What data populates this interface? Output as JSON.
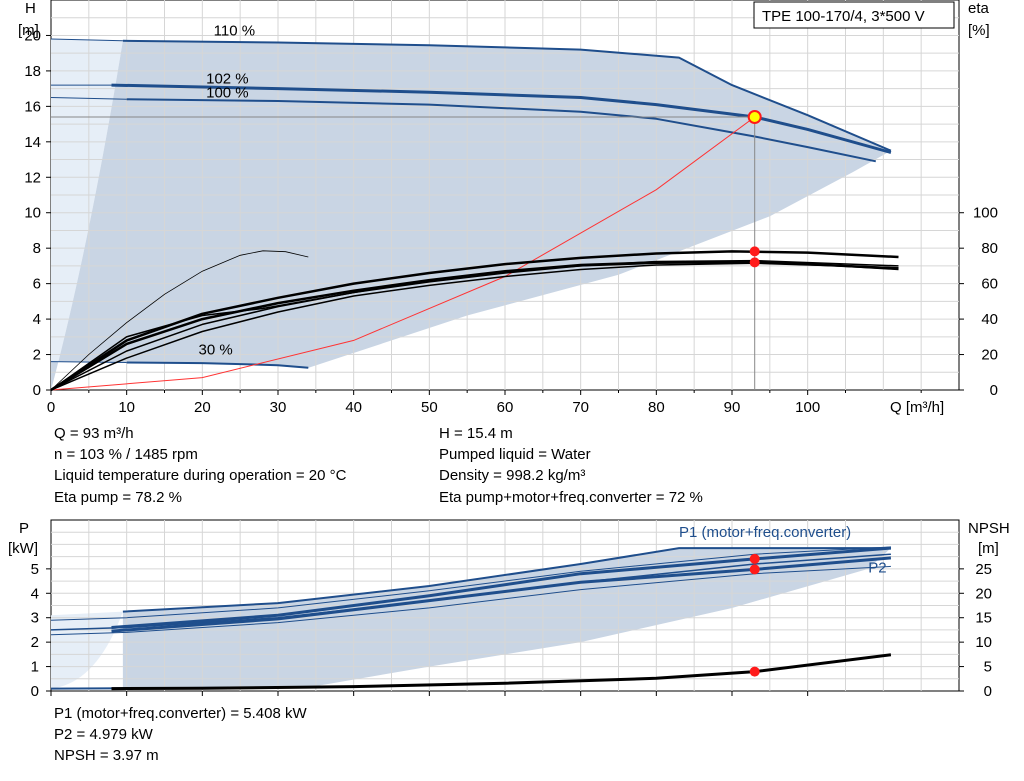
{
  "chart_data": [
    {
      "type": "line",
      "title": "TPE 100-170/4, 3*500 V",
      "x_axis": {
        "label": "Q [m³/h]",
        "range": [
          0,
          120
        ],
        "ticks": [
          0,
          10,
          20,
          30,
          40,
          50,
          60,
          70,
          80,
          90,
          100
        ]
      },
      "y_left": {
        "label_line1": "H",
        "label_line2": "[m]",
        "range": [
          0,
          22
        ],
        "ticks": [
          0,
          2,
          4,
          6,
          8,
          10,
          12,
          14,
          16,
          18,
          20
        ]
      },
      "y_right": {
        "label_line1": "eta",
        "label_line2": "[%]",
        "range": [
          0,
          220
        ],
        "ticks": [
          0,
          20,
          40,
          60,
          80,
          100
        ]
      },
      "grid": true,
      "curve_labels": [
        {
          "text": "110 %",
          "q": 21.5,
          "h": 20.0
        },
        {
          "text": "102 %",
          "q": 20.5,
          "h": 17.3
        },
        {
          "text": "100 %",
          "q": 20.5,
          "h": 16.5
        },
        {
          "text": "30 %",
          "q": 19.5,
          "h": 2.0
        }
      ],
      "series": [
        {
          "role": "H-110",
          "points": [
            [
              0,
              19.8
            ],
            [
              9.5,
              19.7
            ],
            [
              30,
              19.6
            ],
            [
              50,
              19.45
            ],
            [
              70,
              19.2
            ],
            [
              83,
              18.75
            ],
            [
              90,
              17.2
            ],
            [
              100,
              15.5
            ],
            [
              111,
              13.5
            ]
          ]
        },
        {
          "role": "H-102",
          "points": [
            [
              0,
              17.2
            ],
            [
              8,
              17.2
            ],
            [
              30,
              17.0
            ],
            [
              50,
              16.8
            ],
            [
              70,
              16.5
            ],
            [
              80,
              16.1
            ],
            [
              93,
              15.4
            ],
            [
              100,
              14.7
            ],
            [
              111,
              13.4
            ]
          ]
        },
        {
          "role": "H-100",
          "points": [
            [
              0,
              16.5
            ],
            [
              10,
              16.4
            ],
            [
              30,
              16.3
            ],
            [
              50,
              16.1
            ],
            [
              70,
              15.7
            ],
            [
              80,
              15.3
            ],
            [
              93,
              14.3
            ],
            [
              100,
              13.7
            ],
            [
              109,
              12.9
            ]
          ]
        },
        {
          "role": "H-30",
          "points": [
            [
              0,
              1.6
            ],
            [
              10,
              1.55
            ],
            [
              20,
              1.52
            ],
            [
              30,
              1.4
            ],
            [
              34,
              1.25
            ]
          ]
        },
        {
          "role": "system",
          "points": [
            [
              0,
              0
            ],
            [
              20,
              0.7
            ],
            [
              40,
              2.8
            ],
            [
              60,
              6.4
            ],
            [
              80,
              11.3
            ],
            [
              93,
              15.4
            ]
          ]
        },
        {
          "role": "eta-thin",
          "points": [
            [
              0,
              0
            ],
            [
              5,
              20
            ],
            [
              10,
              38
            ],
            [
              15,
              54
            ],
            [
              20,
              67
            ],
            [
              25,
              76
            ],
            [
              28,
              78.5
            ],
            [
              31,
              78
            ],
            [
              34,
              75
            ]
          ]
        },
        {
          "role": "eta-1",
          "points": [
            [
              0,
              0
            ],
            [
              10,
              28
            ],
            [
              20,
              43
            ],
            [
              30,
              52
            ],
            [
              40,
              60
            ],
            [
              50,
              66
            ],
            [
              60,
              71
            ],
            [
              70,
              74.5
            ],
            [
              80,
              77
            ],
            [
              90,
              78.2
            ],
            [
              100,
              77.5
            ],
            [
              112,
              75
            ]
          ]
        },
        {
          "role": "eta-2",
          "points": [
            [
              0,
              0
            ],
            [
              10,
              26
            ],
            [
              20,
              40
            ],
            [
              30,
              49
            ],
            [
              40,
              56
            ],
            [
              50,
              62
            ],
            [
              60,
              67
            ],
            [
              70,
              70.5
            ],
            [
              80,
              72
            ],
            [
              93,
              72
            ],
            [
              100,
              71
            ],
            [
              112,
              68.5
            ]
          ]
        },
        {
          "role": "eta-3",
          "points": [
            [
              0,
              0
            ],
            [
              10,
              30
            ],
            [
              20,
              42
            ],
            [
              28,
              46
            ],
            [
              40,
              55
            ],
            [
              50,
              62
            ],
            [
              60,
              67
            ],
            [
              70,
              70
            ],
            [
              80,
              71.5
            ],
            [
              93,
              72
            ],
            [
              100,
              71
            ],
            [
              112,
              68
            ]
          ]
        },
        {
          "role": "eta-4",
          "points": [
            [
              0,
              0
            ],
            [
              10,
              22
            ],
            [
              20,
              37
            ],
            [
              30,
              47
            ],
            [
              40,
              55
            ],
            [
              50,
              61
            ],
            [
              60,
              66
            ],
            [
              70,
              70
            ],
            [
              80,
              72.5
            ],
            [
              93,
              73
            ],
            [
              112,
              70
            ]
          ]
        },
        {
          "role": "eta-5",
          "points": [
            [
              0,
              0
            ],
            [
              10,
              18
            ],
            [
              20,
              33
            ],
            [
              30,
              44
            ],
            [
              40,
              53
            ],
            [
              50,
              59
            ],
            [
              60,
              64
            ],
            [
              70,
              68
            ],
            [
              80,
              70.5
            ],
            [
              93,
              71.5
            ],
            [
              112,
              69
            ]
          ]
        }
      ],
      "operating_point": {
        "q": 93,
        "h": 15.4,
        "eta_points": [
          78.2,
          72
        ]
      }
    },
    {
      "type": "line",
      "x_axis": {
        "range": [
          0,
          120
        ]
      },
      "y_left": {
        "label_line1": "P",
        "label_line2": "[kW]",
        "range": [
          0,
          7
        ],
        "ticks": [
          0,
          1,
          2,
          3,
          4,
          5
        ]
      },
      "y_right": {
        "label_line1": "NPSH",
        "label_line2": "[m]",
        "range": [
          0,
          35
        ],
        "ticks": [
          0,
          5,
          10,
          15,
          20,
          25
        ]
      },
      "grid": true,
      "curve_labels": [
        {
          "text": "P1 (motor+freq.converter)",
          "q": 83,
          "p": 6.3
        },
        {
          "text": "P2",
          "q": 108,
          "p": 4.85
        }
      ],
      "series": [
        {
          "role": "P1-110",
          "points": [
            [
              9.5,
              3.25
            ],
            [
              30,
              3.6
            ],
            [
              50,
              4.3
            ],
            [
              70,
              5.2
            ],
            [
              83,
              5.85
            ],
            [
              93,
              5.85
            ],
            [
              111,
              5.85
            ]
          ]
        },
        {
          "role": "P1-102",
          "points": [
            [
              8,
              2.6
            ],
            [
              30,
              3.1
            ],
            [
              50,
              3.9
            ],
            [
              70,
              4.8
            ],
            [
              93,
              5.408
            ],
            [
              111,
              5.85
            ]
          ]
        },
        {
          "role": "P2-102",
          "points": [
            [
              8,
              2.45
            ],
            [
              30,
              2.95
            ],
            [
              50,
              3.7
            ],
            [
              70,
              4.45
            ],
            [
              93,
              4.979
            ],
            [
              111,
              5.45
            ]
          ]
        },
        {
          "role": "P-100",
          "points": [
            [
              0,
              2.5
            ],
            [
              10,
              2.6
            ],
            [
              30,
              3.0
            ],
            [
              50,
              3.7
            ],
            [
              70,
              4.45
            ],
            [
              93,
              5.2
            ],
            [
              111,
              5.6
            ]
          ]
        },
        {
          "role": "P-thin-a",
          "points": [
            [
              0,
              2.3
            ],
            [
              10,
              2.4
            ],
            [
              30,
              2.8
            ],
            [
              50,
              3.4
            ],
            [
              70,
              4.15
            ],
            [
              93,
              4.8
            ],
            [
              111,
              5.1
            ]
          ]
        },
        {
          "role": "P-thin-b",
          "points": [
            [
              0,
              2.9
            ],
            [
              10,
              3.0
            ],
            [
              30,
              3.4
            ],
            [
              50,
              4.1
            ],
            [
              70,
              4.9
            ],
            [
              93,
              5.6
            ],
            [
              111,
              5.9
            ]
          ]
        },
        {
          "role": "P-30",
          "points": [
            [
              0,
              0.1
            ],
            [
              15,
              0.12
            ],
            [
              34,
              0.15
            ]
          ]
        },
        {
          "role": "NPSH",
          "points": [
            [
              8,
              0.5
            ],
            [
              20,
              0.55
            ],
            [
              40,
              0.9
            ],
            [
              60,
              1.6
            ],
            [
              80,
              2.6
            ],
            [
              93,
              3.97
            ],
            [
              111,
              7.4
            ]
          ]
        }
      ],
      "operating_point": {
        "q": 93,
        "p_points": [
          5.408,
          4.979
        ],
        "npsh": 3.97
      }
    }
  ],
  "info_top": {
    "q": "Q = 93 m³/h",
    "n": "n = 103 % / 1485 rpm",
    "liquid_temp": "Liquid temperature during operation = 20 °C",
    "eta_pump": "Eta pump = 78.2 %",
    "h": "H = 15.4 m",
    "pumped_liquid": "Pumped liquid = Water",
    "density": "Density = 998.2 kg/m³",
    "eta_total": "Eta pump+motor+freq.converter = 72 %"
  },
  "info_bottom": {
    "p1": "P1 (motor+freq.converter) = 5.408 kW",
    "p2": "P2 = 4.979 kW",
    "npsh": "NPSH = 3.97 m"
  },
  "colors": {
    "curve": "#1f4e8c",
    "area": "#c9d5e4",
    "area_light": "#e6eef7",
    "system": "#ff3333",
    "point": "#ff1a1a",
    "op_point_fill": "#ffff00",
    "grid": "#d6d6d6"
  }
}
